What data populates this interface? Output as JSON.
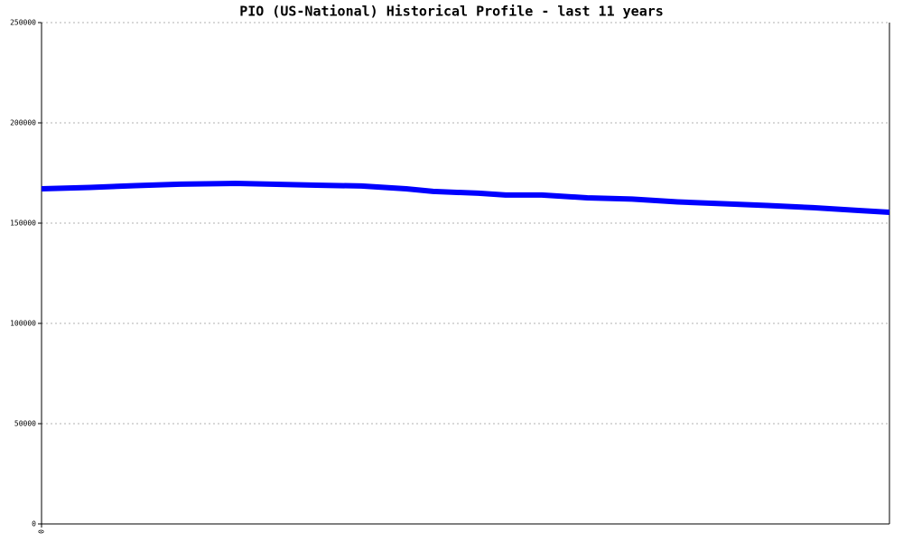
{
  "chart_data": {
    "type": "line",
    "title": "PIO (US-National) Historical Profile - last 11 years",
    "x": [
      0,
      0.63,
      1.22,
      1.8,
      2.51,
      2.98,
      3.56,
      4.15,
      4.73,
      5.08,
      5.67,
      6.02,
      6.49,
      7.08,
      7.66,
      8.25,
      8.84,
      9.42,
      10.01,
      10.6,
      11
    ],
    "series": [
      {
        "name": "PIO",
        "color": "#0000ff",
        "values": [
          167100,
          167800,
          168700,
          169400,
          169800,
          169400,
          168900,
          168500,
          167100,
          165800,
          164900,
          164000,
          164000,
          162600,
          162000,
          160600,
          159700,
          158800,
          157700,
          156300,
          155400
        ]
      }
    ],
    "xlim": [
      0,
      11
    ],
    "xticks": [
      0
    ],
    "ylim": [
      0,
      250000
    ],
    "yticks": [
      0,
      50000,
      100000,
      150000,
      200000,
      250000
    ],
    "grid": true
  }
}
